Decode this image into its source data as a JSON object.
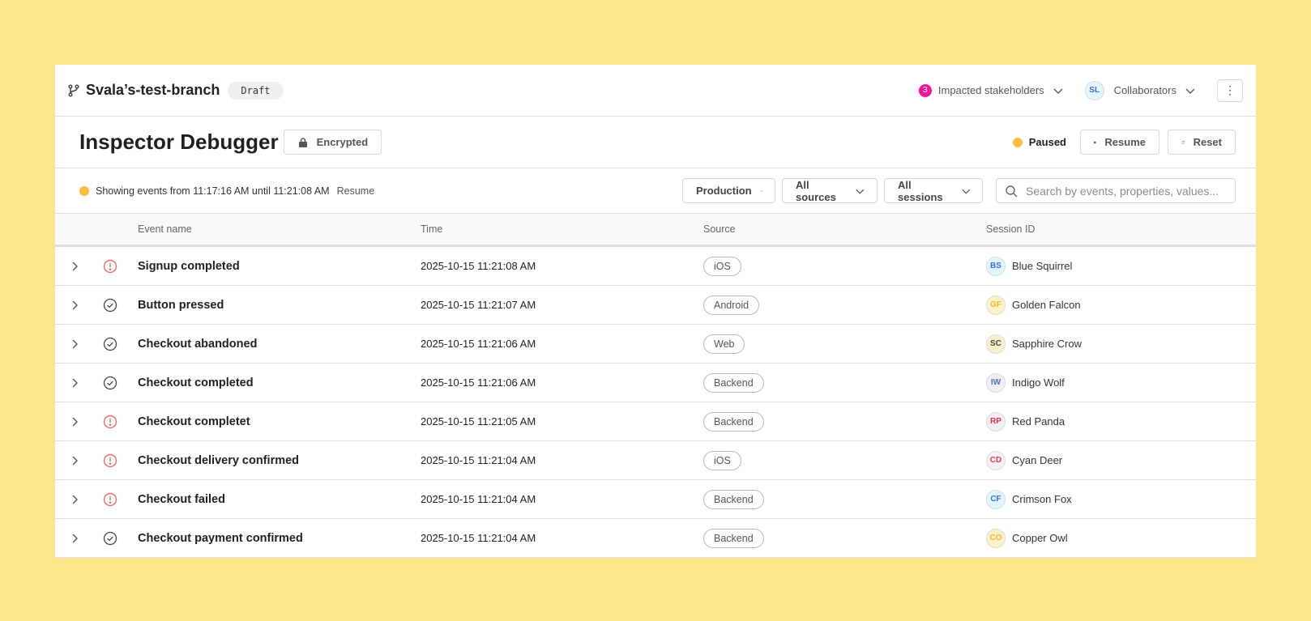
{
  "header": {
    "branch_name": "Svala’s-test-branch",
    "branch_status": "Draft",
    "stakeholders_count": "3",
    "stakeholders_label": "Impacted stakeholders",
    "collaborator_initials": "SL",
    "collaborators_label": "Collaborators",
    "more_icon": "kebab-icon"
  },
  "page": {
    "title": "Inspector Debugger",
    "encrypted_label": "Encrypted",
    "status_label": "Paused",
    "resume_label": "Resume",
    "reset_label": "Reset"
  },
  "filters": {
    "showing_text": "Showing events from 11:17:16 AM until 11:21:08 AM",
    "resume_link": "Resume",
    "environment": "Production",
    "sources": "All sources",
    "sessions": "All sessions",
    "search_placeholder": "Search by events, properties, values..."
  },
  "colors": {
    "background": "#fee58c",
    "paused": "#fcbd3c",
    "badge": "#f0169a",
    "error": "#e5484d"
  },
  "table": {
    "columns": [
      "Event name",
      "Time",
      "Source",
      "Session ID"
    ],
    "rows": [
      {
        "status": "error",
        "event": "Signup completed",
        "time": "2025-10-15 11:21:08 AM",
        "source": "iOS",
        "initials": "BS",
        "session": "Blue Squirrel",
        "av_bg": "#e0f7fd",
        "av_fg": "#3c6fd6"
      },
      {
        "status": "ok",
        "event": "Button pressed",
        "time": "2025-10-15 11:21:07 AM",
        "source": "Android",
        "initials": "GF",
        "session": "Golden Falcon",
        "av_bg": "#fbf2c8",
        "av_fg": "#f2b633"
      },
      {
        "status": "ok",
        "event": "Checkout abandoned",
        "time": "2025-10-15 11:21:06 AM",
        "source": "Web",
        "initials": "SC",
        "session": "Sapphire Crow",
        "av_bg": "#f7f2cc",
        "av_fg": "#444444"
      },
      {
        "status": "ok",
        "event": "Checkout completed",
        "time": "2025-10-15 11:21:06 AM",
        "source": "Backend",
        "initials": "IW",
        "session": "Indigo Wolf",
        "av_bg": "#f0f0f4",
        "av_fg": "#4a6fc8"
      },
      {
        "status": "error",
        "event": "Checkout completet",
        "time": "2025-10-15 11:21:05 AM",
        "source": "Backend",
        "initials": "RP",
        "session": "Red Panda",
        "av_bg": "#f1eff2",
        "av_fg": "#d9324a"
      },
      {
        "status": "error",
        "event": "Checkout delivery confirmed",
        "time": "2025-10-15 11:21:04 AM",
        "source": "iOS",
        "initials": "CD",
        "session": "Cyan Deer",
        "av_bg": "#f4f2f5",
        "av_fg": "#e04055"
      },
      {
        "status": "error",
        "event": "Checkout failed",
        "time": "2025-10-15 11:21:04 AM",
        "source": "Backend",
        "initials": "CF",
        "session": "Crimson Fox",
        "av_bg": "#e0f7fd",
        "av_fg": "#3c6fd6"
      },
      {
        "status": "ok",
        "event": "Checkout payment confirmed",
        "time": "2025-10-15 11:21:04 AM",
        "source": "Backend",
        "initials": "CO",
        "session": "Copper Owl",
        "av_bg": "#fbf2c8",
        "av_fg": "#f2b633"
      }
    ]
  }
}
